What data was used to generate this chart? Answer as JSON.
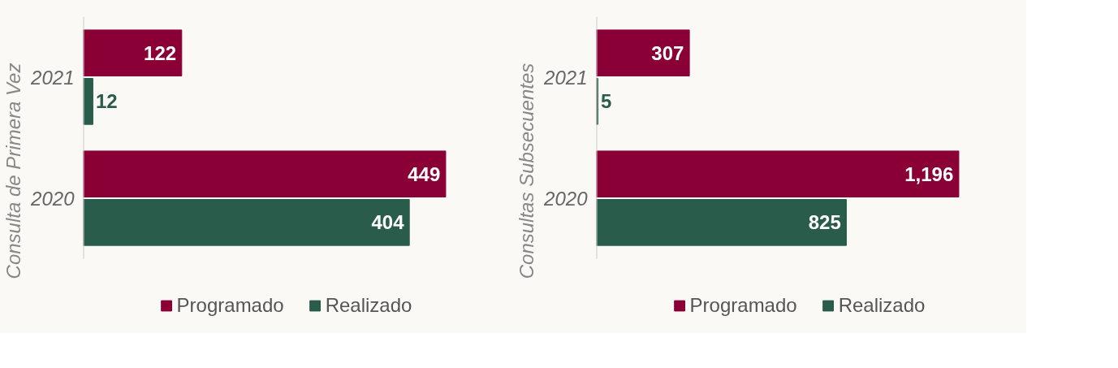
{
  "chart_data": [
    {
      "type": "bar",
      "orientation": "horizontal",
      "ylabel": "Consulta de Primera Vez",
      "categories": [
        "2021",
        "2020"
      ],
      "series": [
        {
          "name": "Programado",
          "color": "#8a0036",
          "values": [
            122,
            449
          ],
          "value_labels": [
            "122",
            "449"
          ]
        },
        {
          "name": "Realizado",
          "color": "#2a5c4c",
          "values": [
            12,
            404
          ],
          "value_labels": [
            "12",
            "404"
          ]
        }
      ],
      "legend": "bottom",
      "grid": false
    },
    {
      "type": "bar",
      "orientation": "horizontal",
      "ylabel": "Consultas Subsecuentes",
      "categories": [
        "2021",
        "2020"
      ],
      "series": [
        {
          "name": "Programado",
          "color": "#8a0036",
          "values": [
            307,
            1196
          ],
          "value_labels": [
            "307",
            "1,196"
          ]
        },
        {
          "name": "Realizado",
          "color": "#2a5c4c",
          "values": [
            5,
            825
          ],
          "value_labels": [
            "5",
            "825"
          ]
        }
      ],
      "legend": "bottom",
      "grid": false
    }
  ]
}
